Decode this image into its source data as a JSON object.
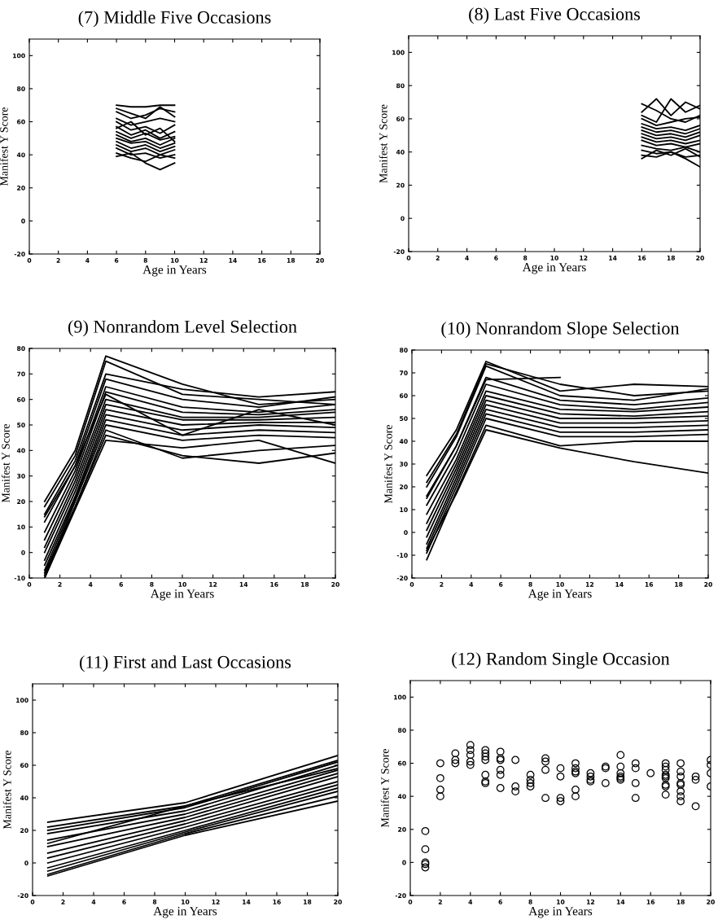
{
  "chart_data": [
    {
      "type": "line",
      "title": "(7) Middle Five Occasions",
      "xlabel": "Age in Years",
      "ylabel": "Manifest Y Score",
      "xlim": [
        0,
        20
      ],
      "xticks": [
        0,
        2,
        4,
        6,
        8,
        10,
        12,
        14,
        16,
        18,
        20
      ],
      "ylim": [
        -20,
        110
      ],
      "yticks": [
        -20,
        0,
        20,
        40,
        60,
        80,
        100
      ],
      "series": [
        {
          "color": "#000000",
          "x": [
            6,
            7,
            8,
            9,
            10
          ],
          "values": [
            70,
            69,
            69,
            70,
            70
          ]
        },
        {
          "color": "#000000",
          "x": [
            6,
            7,
            8,
            9,
            10
          ],
          "values": [
            66,
            62,
            64,
            68,
            66
          ]
        },
        {
          "color": "#000000",
          "x": [
            6,
            7,
            8,
            9,
            10
          ],
          "values": [
            62,
            58,
            60,
            62,
            60
          ]
        },
        {
          "color": "#000000",
          "x": [
            6,
            7,
            8,
            9,
            10
          ],
          "values": [
            60,
            55,
            57,
            53,
            58
          ]
        },
        {
          "color": "#000000",
          "x": [
            6,
            7,
            8,
            9,
            10
          ],
          "values": [
            57,
            52,
            55,
            50,
            54
          ]
        },
        {
          "color": "#000000",
          "x": [
            6,
            7,
            8,
            9,
            10
          ],
          "values": [
            54,
            50,
            53,
            49,
            51
          ]
        },
        {
          "color": "#000000",
          "x": [
            6,
            7,
            8,
            9,
            10
          ],
          "values": [
            52,
            48,
            50,
            46,
            50
          ]
        },
        {
          "color": "#000000",
          "x": [
            6,
            7,
            8,
            9,
            10
          ],
          "values": [
            50,
            47,
            48,
            44,
            47
          ]
        },
        {
          "color": "#000000",
          "x": [
            6,
            7,
            8,
            9,
            10
          ],
          "values": [
            48,
            44,
            46,
            42,
            45
          ]
        },
        {
          "color": "#000000",
          "x": [
            6,
            7,
            8,
            9,
            10
          ],
          "values": [
            46,
            42,
            44,
            40,
            43
          ]
        },
        {
          "color": "#000000",
          "x": [
            6,
            7,
            8,
            9,
            10
          ],
          "values": [
            44,
            40,
            41,
            38,
            40
          ]
        },
        {
          "color": "#000000",
          "x": [
            6,
            7,
            8,
            9,
            10
          ],
          "values": [
            41,
            38,
            36,
            40,
            38
          ]
        },
        {
          "color": "#000000",
          "x": [
            6,
            7,
            8,
            9,
            10
          ],
          "values": [
            39,
            41,
            35,
            31,
            35
          ]
        },
        {
          "color": "#000000",
          "x": [
            6,
            7,
            8,
            9,
            10
          ],
          "values": [
            68,
            65,
            62,
            69,
            63
          ]
        },
        {
          "color": "#000000",
          "x": [
            6,
            7,
            8,
            9,
            10
          ],
          "values": [
            56,
            60,
            52,
            56,
            48
          ]
        }
      ]
    },
    {
      "type": "line",
      "title": "(8) Last Five Occasions",
      "xlabel": "Age in Years",
      "ylabel": "Manifest Y Score",
      "xlim": [
        0,
        20
      ],
      "xticks": [
        0,
        2,
        4,
        6,
        8,
        10,
        12,
        14,
        16,
        18,
        20
      ],
      "ylim": [
        -20,
        110
      ],
      "yticks": [
        -20,
        0,
        20,
        40,
        60,
        80,
        100
      ],
      "series": [
        {
          "color": "#000000",
          "x": [
            16,
            17,
            18,
            19,
            20
          ],
          "values": [
            69,
            65,
            60,
            58,
            62
          ]
        },
        {
          "color": "#000000",
          "x": [
            16,
            17,
            18,
            19,
            20
          ],
          "values": [
            64,
            72,
            62,
            70,
            66
          ]
        },
        {
          "color": "#000000",
          "x": [
            16,
            17,
            18,
            19,
            20
          ],
          "values": [
            62,
            58,
            72,
            64,
            68
          ]
        },
        {
          "color": "#000000",
          "x": [
            16,
            17,
            18,
            19,
            20
          ],
          "values": [
            60,
            56,
            58,
            60,
            61
          ]
        },
        {
          "color": "#000000",
          "x": [
            16,
            17,
            18,
            19,
            20
          ],
          "values": [
            57,
            54,
            55,
            53,
            56
          ]
        },
        {
          "color": "#000000",
          "x": [
            16,
            17,
            18,
            19,
            20
          ],
          "values": [
            55,
            52,
            53,
            51,
            54
          ]
        },
        {
          "color": "#000000",
          "x": [
            16,
            17,
            18,
            19,
            20
          ],
          "values": [
            53,
            50,
            51,
            49,
            52
          ]
        },
        {
          "color": "#000000",
          "x": [
            16,
            17,
            18,
            19,
            20
          ],
          "values": [
            51,
            48,
            49,
            47,
            50
          ]
        },
        {
          "color": "#000000",
          "x": [
            16,
            17,
            18,
            19,
            20
          ],
          "values": [
            49,
            46,
            47,
            45,
            47
          ]
        },
        {
          "color": "#000000",
          "x": [
            16,
            17,
            18,
            19,
            20
          ],
          "values": [
            47,
            44,
            45,
            43,
            45
          ]
        },
        {
          "color": "#000000",
          "x": [
            16,
            17,
            18,
            19,
            20
          ],
          "values": [
            44,
            42,
            41,
            43,
            40
          ]
        },
        {
          "color": "#000000",
          "x": [
            16,
            17,
            18,
            19,
            20
          ],
          "values": [
            41,
            39,
            40,
            37,
            38
          ]
        },
        {
          "color": "#000000",
          "x": [
            16,
            17,
            18,
            19,
            20
          ],
          "values": [
            38,
            37,
            40,
            36,
            31
          ]
        },
        {
          "color": "#000000",
          "x": [
            16,
            17,
            18,
            19,
            20
          ],
          "values": [
            36,
            41,
            38,
            42,
            37
          ]
        }
      ]
    },
    {
      "type": "line",
      "title": "(9) Nonrandom Level Selection",
      "xlabel": "Age in Years",
      "ylabel": "Manifest Y Score",
      "xlim": [
        0,
        20
      ],
      "xticks": [
        0,
        2,
        4,
        6,
        8,
        10,
        12,
        14,
        16,
        18,
        20
      ],
      "ylim": [
        -10,
        80
      ],
      "yticks": [
        -10,
        0,
        10,
        20,
        30,
        40,
        50,
        60,
        70,
        80
      ],
      "series": [
        {
          "color": "#000000",
          "x": [
            1,
            3,
            5,
            10,
            15,
            20
          ],
          "values": [
            20,
            40,
            77,
            66,
            58,
            60
          ]
        },
        {
          "color": "#000000",
          "x": [
            1,
            3,
            5,
            10,
            15,
            20
          ],
          "values": [
            18,
            38,
            75,
            62,
            60,
            58
          ]
        },
        {
          "color": "#000000",
          "x": [
            1,
            3,
            5,
            10,
            15,
            20
          ],
          "values": [
            15,
            36,
            70,
            64,
            61,
            63
          ]
        },
        {
          "color": "#000000",
          "x": [
            1,
            3,
            5,
            10,
            15,
            20
          ],
          "values": [
            12,
            34,
            68,
            60,
            57,
            61
          ]
        },
        {
          "color": "#000000",
          "x": [
            1,
            3,
            5,
            10,
            15,
            20
          ],
          "values": [
            8,
            32,
            65,
            57,
            55,
            58
          ]
        },
        {
          "color": "#000000",
          "x": [
            1,
            3,
            5,
            10,
            15,
            20
          ],
          "values": [
            5,
            30,
            63,
            55,
            54,
            56
          ]
        },
        {
          "color": "#000000",
          "x": [
            1,
            3,
            5,
            10,
            15,
            20
          ],
          "values": [
            2,
            28,
            60,
            53,
            53,
            55
          ]
        },
        {
          "color": "#000000",
          "x": [
            1,
            3,
            5,
            10,
            15,
            20
          ],
          "values": [
            0,
            26,
            58,
            52,
            52,
            53
          ]
        },
        {
          "color": "#000000",
          "x": [
            1,
            3,
            5,
            10,
            15,
            20
          ],
          "values": [
            -3,
            24,
            56,
            50,
            51,
            51
          ]
        },
        {
          "color": "#000000",
          "x": [
            1,
            3,
            5,
            10,
            15,
            20
          ],
          "values": [
            -5,
            22,
            54,
            48,
            50,
            49
          ]
        },
        {
          "color": "#000000",
          "x": [
            1,
            3,
            5,
            10,
            15,
            20
          ],
          "values": [
            -7,
            21,
            52,
            46,
            48,
            47
          ]
        },
        {
          "color": "#000000",
          "x": [
            1,
            3,
            5,
            10,
            15,
            20
          ],
          "values": [
            -9,
            20,
            50,
            44,
            46,
            45
          ]
        },
        {
          "color": "#000000",
          "x": [
            1,
            3,
            5,
            10,
            15,
            20
          ],
          "values": [
            -10,
            18,
            48,
            37,
            40,
            42
          ]
        },
        {
          "color": "#000000",
          "x": [
            1,
            3,
            5,
            10,
            15,
            20
          ],
          "values": [
            -8,
            18,
            46,
            38,
            35,
            39
          ]
        },
        {
          "color": "#000000",
          "x": [
            1,
            3,
            5,
            10,
            15,
            20
          ],
          "values": [
            -10,
            17,
            44,
            41,
            44,
            35
          ]
        },
        {
          "color": "#000000",
          "x": [
            1,
            3,
            5,
            10,
            15,
            20
          ],
          "values": [
            14,
            34,
            62,
            46,
            56,
            50
          ]
        }
      ]
    },
    {
      "type": "line",
      "title": "(10) Nonrandom Slope Selection",
      "xlabel": "Age in Years",
      "ylabel": "Manifest Y Score",
      "xlim": [
        0,
        20
      ],
      "xticks": [
        0,
        2,
        4,
        6,
        8,
        10,
        12,
        14,
        16,
        18,
        20
      ],
      "ylim": [
        -20,
        80
      ],
      "yticks": [
        -20,
        -10,
        0,
        10,
        20,
        30,
        40,
        50,
        60,
        70,
        80
      ],
      "series": [
        {
          "color": "#000000",
          "x": [
            1,
            3,
            5,
            10,
            15,
            20
          ],
          "values": [
            25,
            45,
            75,
            62,
            65,
            64
          ]
        },
        {
          "color": "#000000",
          "x": [
            1,
            3,
            5,
            10,
            15,
            20
          ],
          "values": [
            22,
            43,
            74,
            65,
            60,
            62
          ]
        },
        {
          "color": "#000000",
          "x": [
            1,
            3,
            5,
            10,
            15,
            20
          ],
          "values": [
            20,
            42,
            73,
            60,
            58,
            63
          ]
        },
        {
          "color": "#000000",
          "x": [
            1,
            3,
            5,
            10,
            15,
            20
          ],
          "values": [
            16,
            38,
            68,
            58,
            56,
            59
          ]
        },
        {
          "color": "#000000",
          "x": [
            1,
            3,
            5,
            10,
            15,
            20
          ],
          "values": [
            12,
            35,
            65,
            56,
            54,
            57
          ]
        },
        {
          "color": "#000000",
          "x": [
            1,
            3,
            5,
            10,
            15,
            20
          ],
          "values": [
            8,
            32,
            62,
            54,
            53,
            55
          ]
        },
        {
          "color": "#000000",
          "x": [
            1,
            3,
            5,
            10,
            15,
            20
          ],
          "values": [
            4,
            30,
            60,
            52,
            51,
            53
          ]
        },
        {
          "color": "#000000",
          "x": [
            1,
            3,
            5,
            10,
            15,
            20
          ],
          "values": [
            1,
            28,
            58,
            50,
            50,
            51
          ]
        },
        {
          "color": "#000000",
          "x": [
            1,
            3,
            5,
            10,
            15,
            20
          ],
          "values": [
            -2,
            26,
            56,
            48,
            48,
            49
          ]
        },
        {
          "color": "#000000",
          "x": [
            1,
            3,
            5,
            10,
            15,
            20
          ],
          "values": [
            -5,
            24,
            54,
            46,
            46,
            47
          ]
        },
        {
          "color": "#000000",
          "x": [
            1,
            3,
            5,
            10,
            15,
            20
          ],
          "values": [
            -7,
            22,
            52,
            44,
            44,
            45
          ]
        },
        {
          "color": "#000000",
          "x": [
            1,
            3,
            5,
            10,
            15,
            20
          ],
          "values": [
            -9,
            20,
            50,
            42,
            42,
            43
          ]
        },
        {
          "color": "#000000",
          "x": [
            1,
            3,
            5,
            10,
            15,
            20
          ],
          "values": [
            -12,
            18,
            47,
            38,
            40,
            40
          ]
        },
        {
          "color": "#000000",
          "x": [
            1,
            3,
            5,
            10,
            15,
            20
          ],
          "values": [
            -8,
            17,
            45,
            37,
            31,
            26
          ]
        },
        {
          "color": "#000000",
          "x": [
            1,
            3,
            5,
            10
          ],
          "values": [
            15,
            38,
            67,
            68
          ]
        }
      ]
    },
    {
      "type": "line",
      "title": "(11) First and Last Occasions",
      "xlabel": "Age in Years",
      "ylabel": "Manifest Y Score",
      "xlim": [
        0,
        20
      ],
      "xticks": [
        0,
        2,
        4,
        6,
        8,
        10,
        12,
        14,
        16,
        18,
        20
      ],
      "ylim": [
        -20,
        110
      ],
      "yticks": [
        -20,
        0,
        20,
        40,
        60,
        80,
        100
      ],
      "series": [
        {
          "color": "#000000",
          "x": [
            1,
            10,
            20
          ],
          "values": [
            25,
            37,
            66
          ]
        },
        {
          "color": "#000000",
          "x": [
            1,
            10,
            20
          ],
          "values": [
            22,
            35,
            63
          ]
        },
        {
          "color": "#000000",
          "x": [
            1,
            10,
            20
          ],
          "values": [
            20,
            34,
            62
          ]
        },
        {
          "color": "#000000",
          "x": [
            1,
            10,
            20
          ],
          "values": [
            18,
            32,
            60
          ]
        },
        {
          "color": "#000000",
          "x": [
            1,
            10,
            20
          ],
          "values": [
            14,
            30,
            57
          ]
        },
        {
          "color": "#000000",
          "x": [
            1,
            10,
            20
          ],
          "values": [
            10,
            28,
            55
          ]
        },
        {
          "color": "#000000",
          "x": [
            1,
            10,
            20
          ],
          "values": [
            6,
            26,
            53
          ]
        },
        {
          "color": "#000000",
          "x": [
            1,
            10,
            20
          ],
          "values": [
            3,
            24,
            50
          ]
        },
        {
          "color": "#000000",
          "x": [
            1,
            10,
            20
          ],
          "values": [
            0,
            22,
            48
          ]
        },
        {
          "color": "#000000",
          "x": [
            1,
            10,
            20
          ],
          "values": [
            -3,
            20,
            46
          ]
        },
        {
          "color": "#000000",
          "x": [
            1,
            10,
            20
          ],
          "values": [
            -5,
            19,
            44
          ]
        },
        {
          "color": "#000000",
          "x": [
            1,
            10,
            20
          ],
          "values": [
            -7,
            18,
            41
          ]
        },
        {
          "color": "#000000",
          "x": [
            1,
            10,
            20
          ],
          "values": [
            -8,
            17,
            38
          ]
        },
        {
          "color": "#000000",
          "x": [
            1,
            10,
            20
          ],
          "values": [
            12,
            35,
            58
          ]
        }
      ]
    },
    {
      "type": "scatter",
      "title": "(12) Random Single Occasion",
      "xlabel": "Age in Years",
      "ylabel": "Manifest Y Score",
      "xlim": [
        0,
        20
      ],
      "xticks": [
        0,
        2,
        4,
        6,
        8,
        10,
        12,
        14,
        16,
        18,
        20
      ],
      "ylim": [
        -20,
        110
      ],
      "yticks": [
        -20,
        0,
        20,
        40,
        60,
        80,
        100
      ],
      "marker": "circle",
      "series": [
        {
          "color": "#000000",
          "x": [
            1,
            1,
            1,
            1,
            1,
            2,
            2,
            2,
            2,
            3,
            3,
            3,
            4,
            4,
            4,
            4,
            4,
            5,
            5,
            5,
            5,
            5,
            5,
            5,
            6,
            6,
            6,
            6,
            6,
            6,
            7,
            7,
            7,
            8,
            8,
            8,
            8,
            9,
            9,
            9,
            9,
            10,
            10,
            10,
            10,
            11,
            11,
            11,
            11,
            11,
            11,
            12,
            12,
            12,
            12,
            13,
            13,
            13,
            14,
            14,
            14,
            14,
            14,
            14,
            15,
            15,
            15,
            15,
            16,
            17,
            17,
            17,
            17,
            17,
            17,
            17,
            17,
            17,
            18,
            18,
            18,
            18,
            18,
            18,
            18,
            18,
            19,
            19,
            19,
            20,
            20,
            20,
            20
          ],
          "values": [
            19,
            8,
            0,
            -1,
            -3,
            60,
            51,
            44,
            40,
            66,
            62,
            60,
            71,
            68,
            65,
            61,
            59,
            68,
            66,
            64,
            62,
            53,
            49,
            48,
            67,
            63,
            62,
            56,
            53,
            45,
            62,
            46,
            43,
            53,
            50,
            48,
            46,
            63,
            61,
            56,
            39,
            57,
            52,
            39,
            37,
            60,
            57,
            55,
            54,
            44,
            40,
            54,
            52,
            50,
            49,
            58,
            57,
            48,
            65,
            58,
            54,
            52,
            51,
            50,
            60,
            57,
            48,
            39,
            54,
            60,
            58,
            56,
            53,
            52,
            51,
            47,
            46,
            41,
            60,
            55,
            52,
            48,
            47,
            43,
            40,
            37,
            52,
            50,
            34,
            62,
            59,
            54,
            46
          ]
        }
      ]
    }
  ]
}
